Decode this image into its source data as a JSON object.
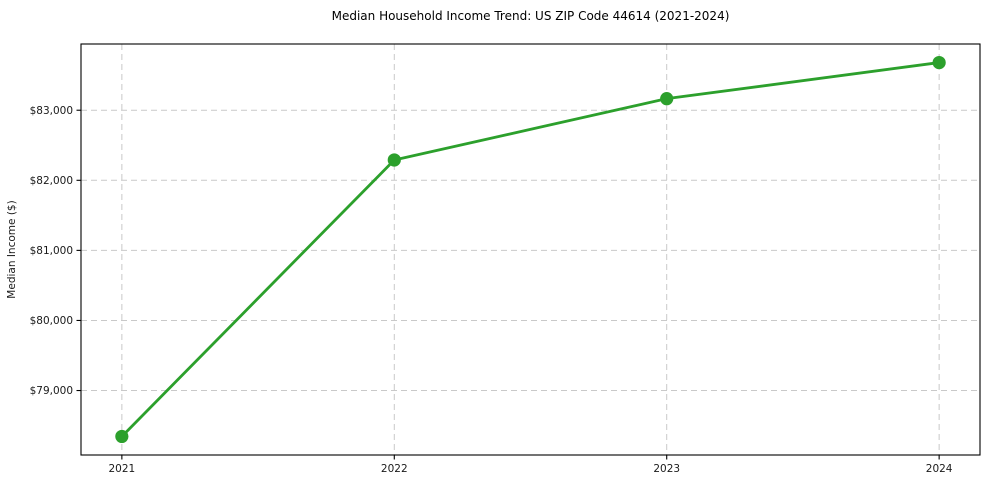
{
  "title": "Median Household Income Trend: US ZIP Code 44614 (2021-2024)",
  "colors": {
    "line": "#2ca02c",
    "marker": "#2ca02c",
    "grid": "#c9c9c9",
    "spine": "#000000",
    "text": "#1a1a1a",
    "background": "#ffffff"
  },
  "chart_data": {
    "type": "line",
    "title": "Median Household Income Trend: US ZIP Code 44614 (2021-2024)",
    "xlabel": "",
    "ylabel": "Median Income ($)",
    "x": [
      2021,
      2022,
      2023,
      2024
    ],
    "x_tick_labels": [
      "2021",
      "2022",
      "2023",
      "2024"
    ],
    "series": [
      {
        "name": "Median Household Income",
        "values": [
          78345,
          82290,
          83165,
          83680
        ]
      }
    ],
    "y_ticks": [
      79000,
      80000,
      81000,
      82000,
      83000
    ],
    "y_tick_labels": [
      "$79,000",
      "$80,000",
      "$81,000",
      "$82,000",
      "$83,000"
    ],
    "xlim": [
      2020.85,
      2024.15
    ],
    "ylim": [
      78080,
      83945
    ],
    "grid": true,
    "grid_style": "dashed",
    "legend": "none",
    "marker": "circle"
  }
}
